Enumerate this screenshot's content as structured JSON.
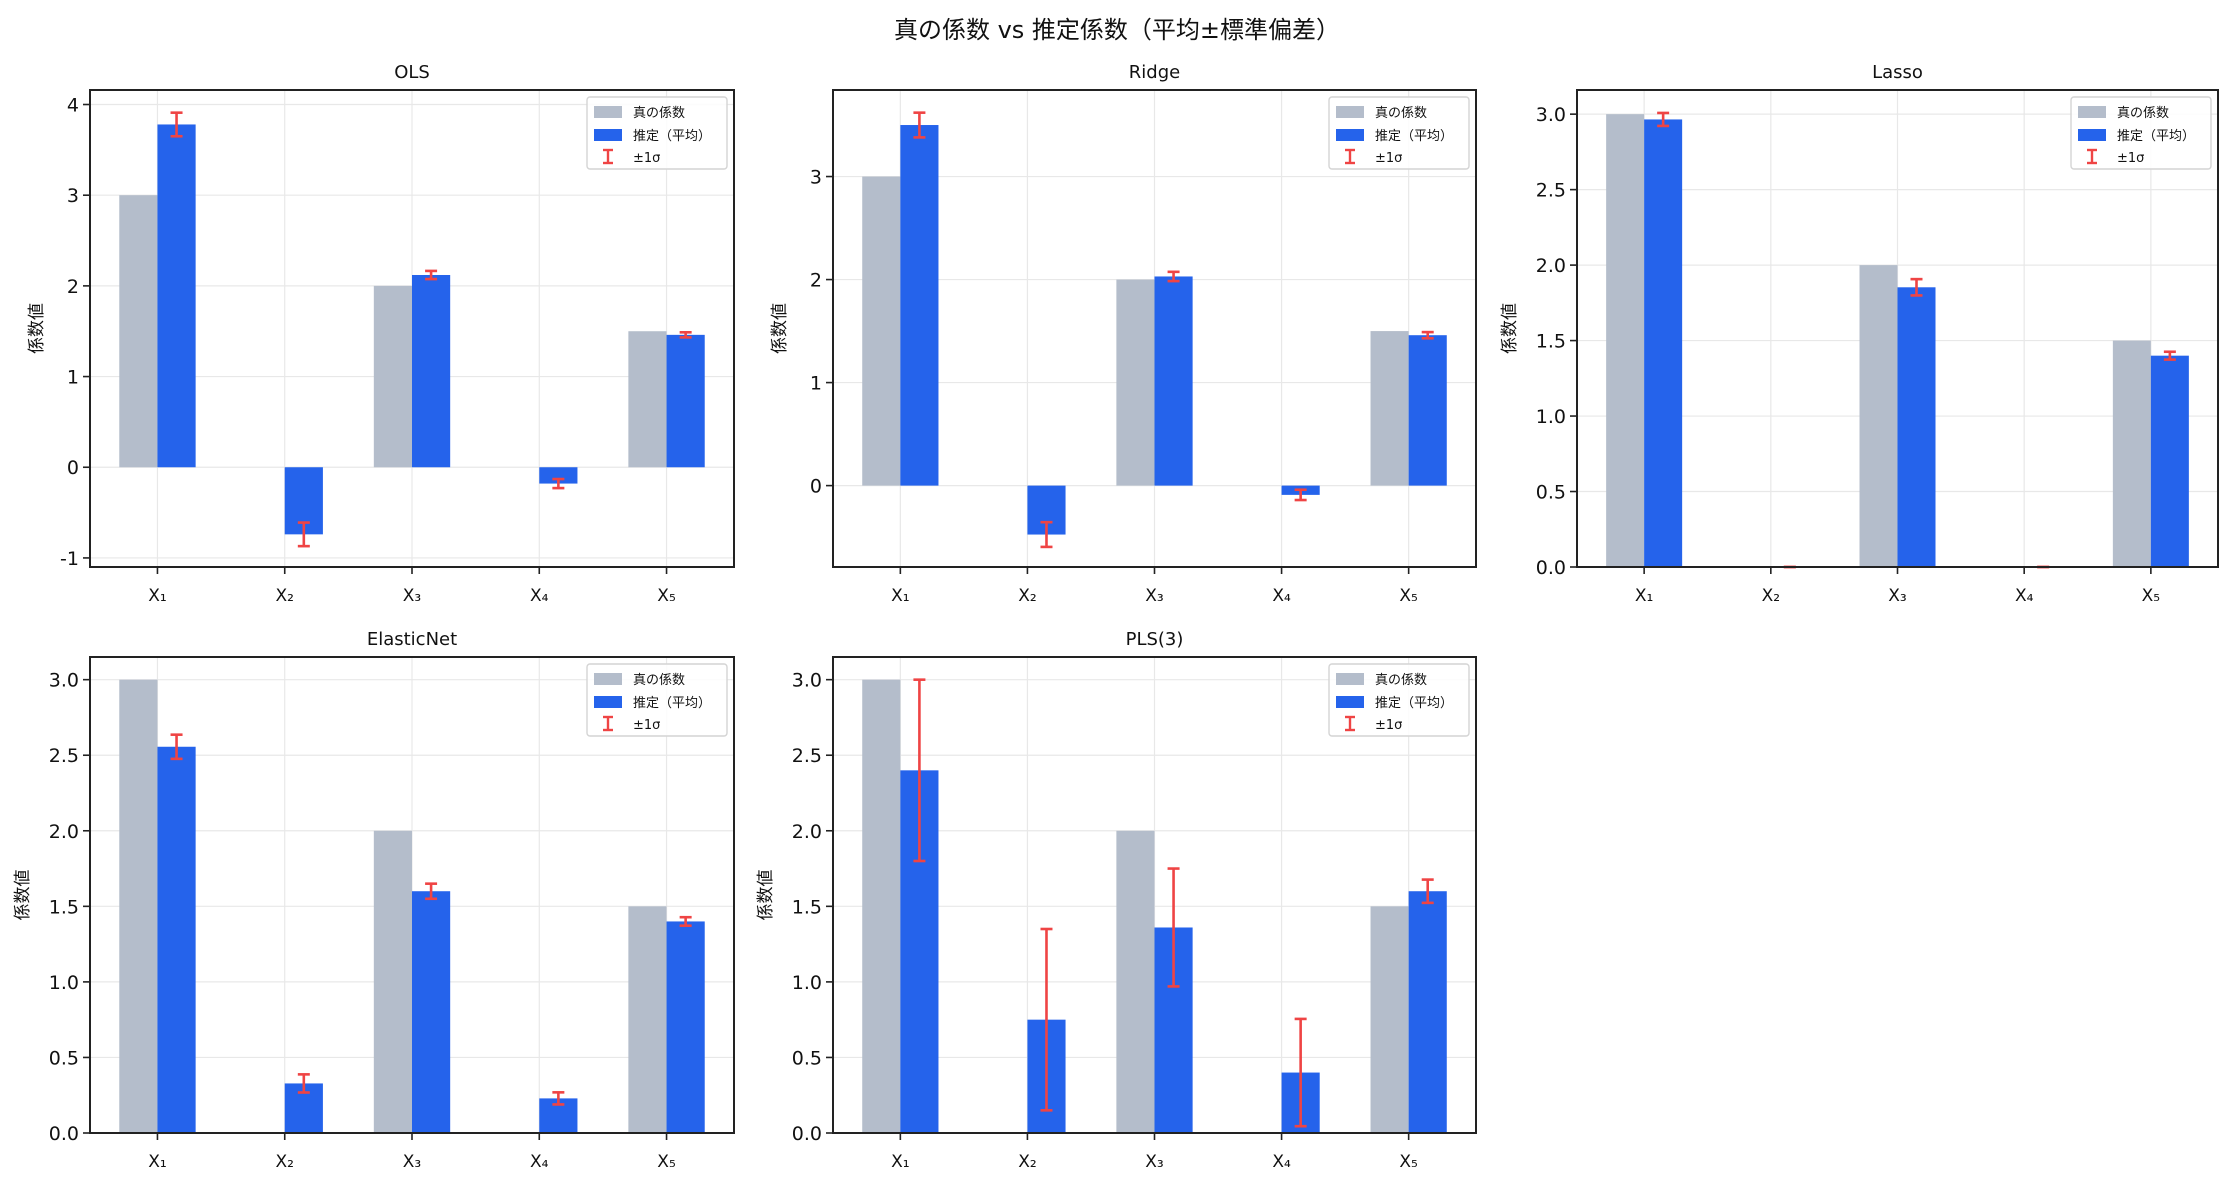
{
  "figure": {
    "suptitle": "真の係数 vs 推定係数（平均±標準偏差）"
  },
  "colors": {
    "true": "#b4bdcb",
    "estimate": "#2563eb",
    "error": "#ef4444",
    "grid": "#e8e8e8"
  },
  "legend_labels": [
    "真の係数",
    "推定（平均）",
    "±1σ"
  ],
  "chart_data": [
    {
      "type": "bar",
      "title": "OLS",
      "ylabel": "係数値",
      "categories": [
        "X₁",
        "X₂",
        "X₃",
        "X₄",
        "X₅"
      ],
      "ylim": [
        -1.1,
        4.16
      ],
      "yticks": [
        -1,
        0,
        1,
        2,
        3,
        4
      ],
      "ytick_labels": [
        "-1",
        "0",
        "1",
        "2",
        "3",
        "4"
      ],
      "grid": true,
      "legend": "top-right",
      "series": [
        {
          "name": "真の係数",
          "values": [
            3,
            0,
            2,
            0,
            1.5
          ]
        },
        {
          "name": "推定（平均）",
          "values": [
            3.78,
            -0.74,
            2.12,
            -0.18,
            1.46
          ],
          "error": [
            0.13,
            0.13,
            0.045,
            0.05,
            0.028
          ]
        }
      ]
    },
    {
      "type": "bar",
      "title": "Ridge",
      "ylabel": "係数値",
      "categories": [
        "X₁",
        "X₂",
        "X₃",
        "X₄",
        "X₅"
      ],
      "ylim": [
        -0.79,
        3.84
      ],
      "yticks": [
        0,
        1,
        2,
        3
      ],
      "ytick_labels": [
        "0",
        "1",
        "2",
        "3"
      ],
      "grid": true,
      "legend": "top-right",
      "series": [
        {
          "name": "真の係数",
          "values": [
            3,
            0,
            2,
            0,
            1.5
          ]
        },
        {
          "name": "推定（平均）",
          "values": [
            3.5,
            -0.475,
            2.03,
            -0.09,
            1.46
          ],
          "error": [
            0.12,
            0.12,
            0.045,
            0.05,
            0.03
          ]
        }
      ]
    },
    {
      "type": "bar",
      "title": "Lasso",
      "ylabel": "係数値",
      "categories": [
        "X₁",
        "X₂",
        "X₃",
        "X₄",
        "X₅"
      ],
      "ylim": [
        0,
        3.16
      ],
      "yticks": [
        0,
        0.5,
        1,
        1.5,
        2,
        2.5,
        3
      ],
      "ytick_labels": [
        "0.0",
        "0.5",
        "1.0",
        "1.5",
        "2.0",
        "2.5",
        "3.0"
      ],
      "grid": true,
      "legend": "top-right",
      "series": [
        {
          "name": "真の係数",
          "values": [
            3,
            0,
            2,
            0,
            1.5
          ]
        },
        {
          "name": "推定（平均）",
          "values": [
            2.965,
            0,
            1.853,
            0,
            1.4
          ],
          "error": [
            0.043,
            0,
            0.054,
            0,
            0.026
          ]
        }
      ]
    },
    {
      "type": "bar",
      "title": "ElasticNet",
      "ylabel": "係数値",
      "categories": [
        "X₁",
        "X₂",
        "X₃",
        "X₄",
        "X₅"
      ],
      "ylim": [
        0,
        3.15
      ],
      "yticks": [
        0,
        0.5,
        1,
        1.5,
        2,
        2.5,
        3
      ],
      "ytick_labels": [
        "0.0",
        "0.5",
        "1.0",
        "1.5",
        "2.0",
        "2.5",
        "3.0"
      ],
      "grid": true,
      "legend": "top-right",
      "series": [
        {
          "name": "真の係数",
          "values": [
            3,
            0,
            2,
            0,
            1.5
          ]
        },
        {
          "name": "推定（平均）",
          "values": [
            2.556,
            0.328,
            1.6,
            0.229,
            1.4
          ],
          "error": [
            0.08,
            0.06,
            0.05,
            0.04,
            0.028
          ]
        }
      ]
    },
    {
      "type": "bar",
      "title": "PLS(3)",
      "ylabel": "係数値",
      "categories": [
        "X₁",
        "X₂",
        "X₃",
        "X₄",
        "X₅"
      ],
      "ylim": [
        0,
        3.15
      ],
      "yticks": [
        0,
        0.5,
        1,
        1.5,
        2,
        2.5,
        3
      ],
      "ytick_labels": [
        "0.0",
        "0.5",
        "1.0",
        "1.5",
        "2.0",
        "2.5",
        "3.0"
      ],
      "grid": true,
      "legend": "top-right",
      "series": [
        {
          "name": "真の係数",
          "values": [
            3,
            0,
            2,
            0,
            1.5
          ]
        },
        {
          "name": "推定（平均）",
          "values": [
            2.4,
            0.75,
            1.36,
            0.4,
            1.6
          ],
          "error": [
            0.6,
            0.6,
            0.39,
            0.355,
            0.077
          ]
        }
      ]
    }
  ]
}
